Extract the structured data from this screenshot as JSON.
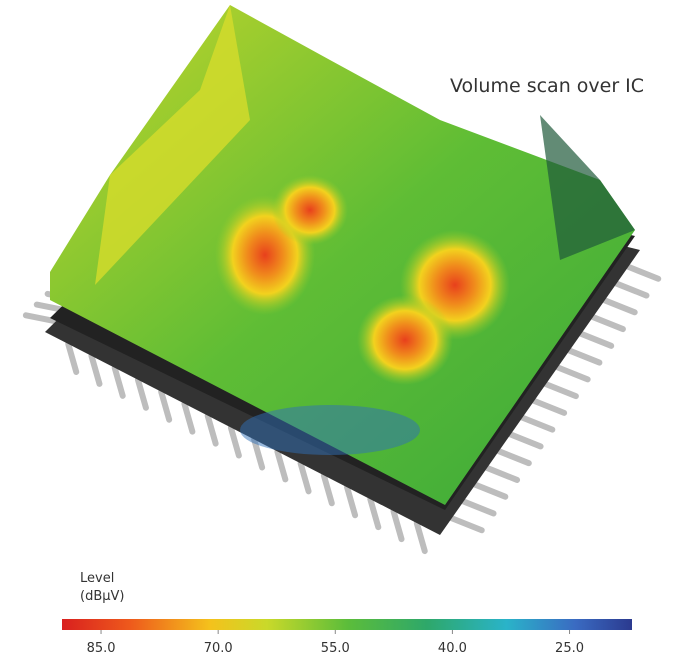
{
  "title": "Volume scan over IC",
  "colorbar": {
    "label": "Level",
    "unit": "(dBµV)",
    "range": [
      90,
      17
    ],
    "ticks": [
      {
        "value": 85,
        "label": "85.0"
      },
      {
        "value": 70,
        "label": "70.0"
      },
      {
        "value": 55,
        "label": "55.0"
      },
      {
        "value": 40,
        "label": "40.0"
      },
      {
        "value": 25,
        "label": "25.0"
      }
    ]
  }
}
